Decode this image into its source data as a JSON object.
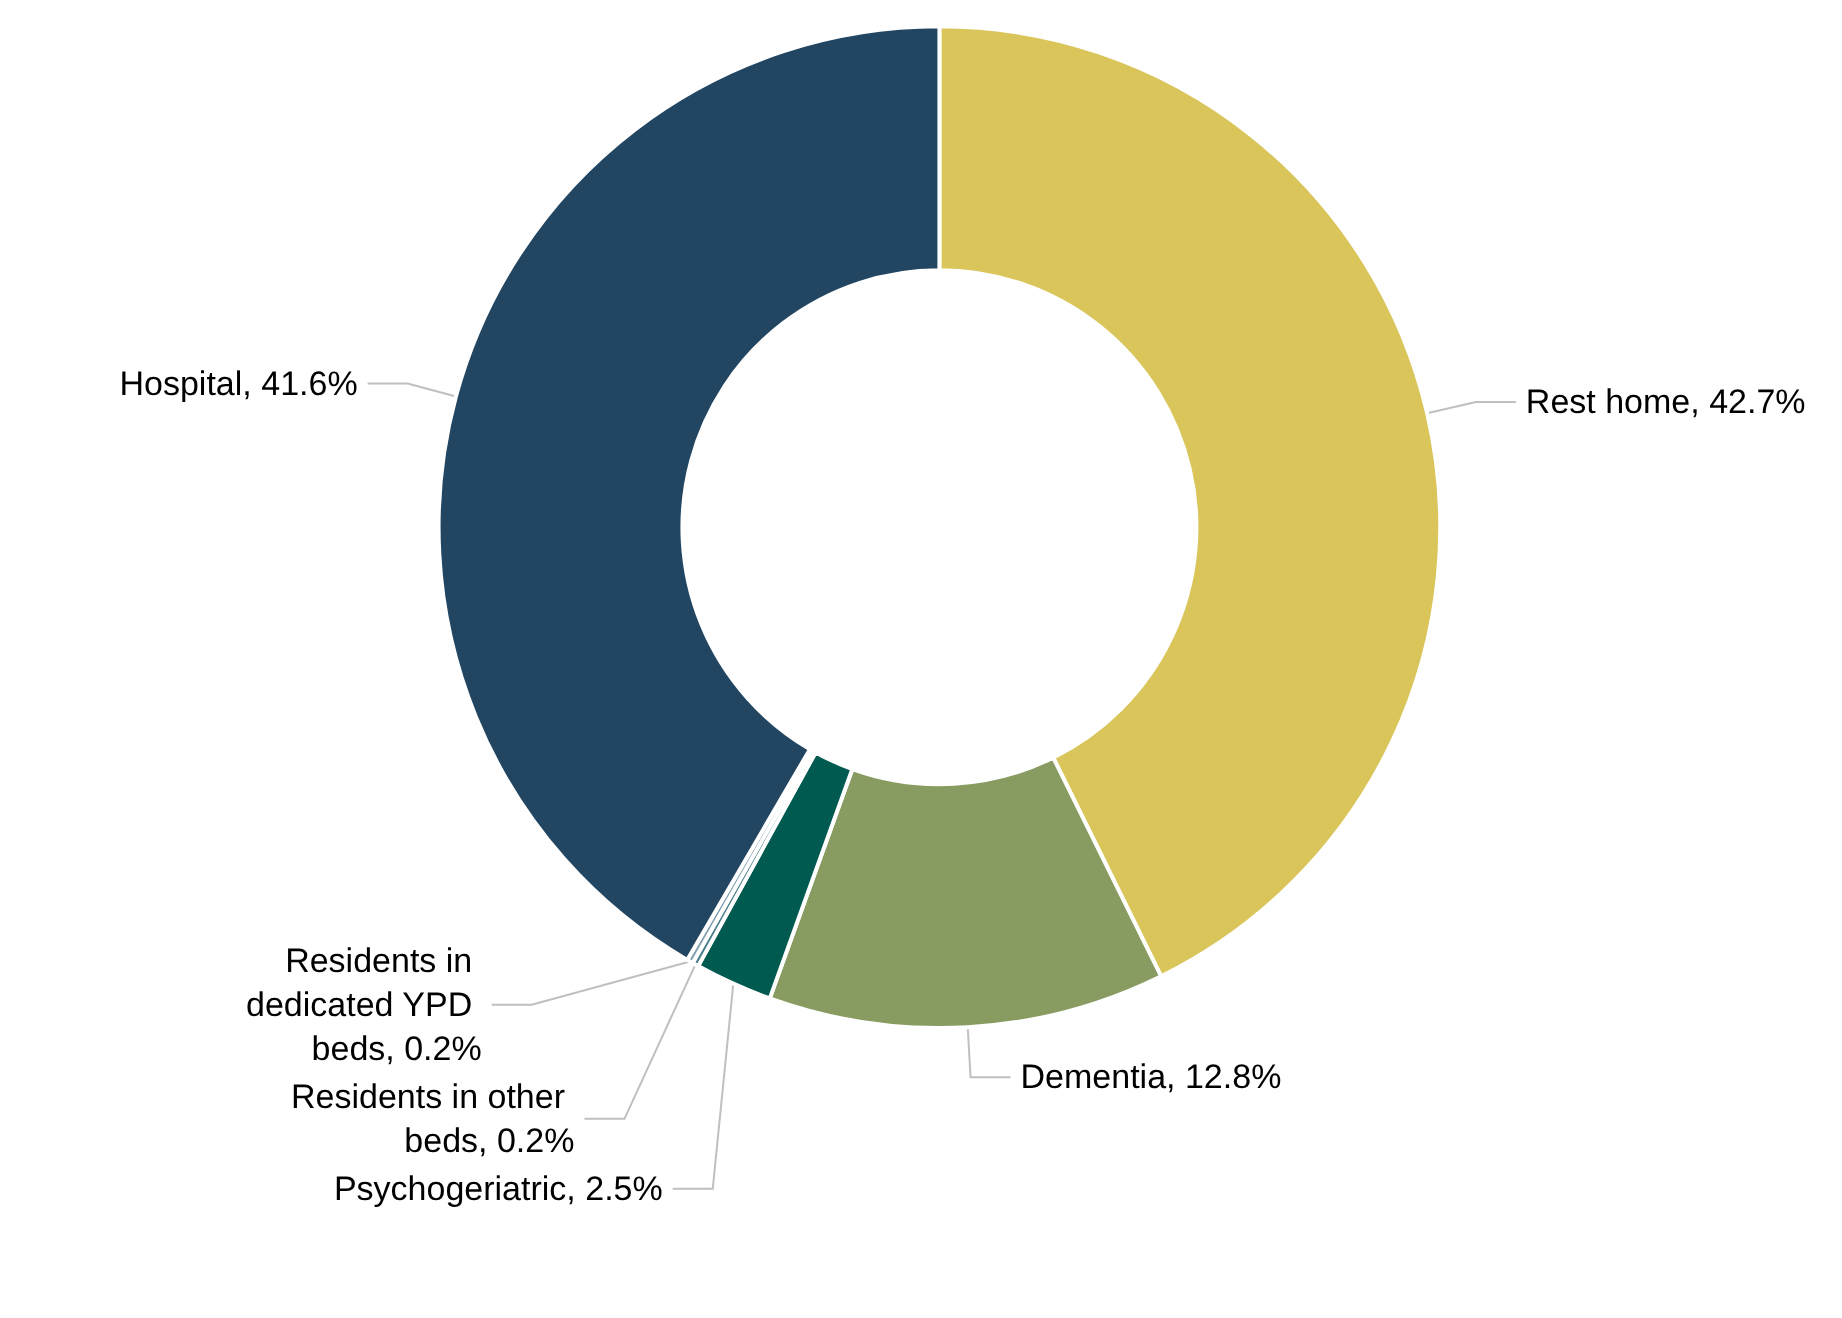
{
  "chart_data": {
    "type": "donut",
    "categories": [
      "Rest home",
      "Dementia",
      "Psychogeriatric",
      "Residents in other beds",
      "Residents in dedicated YPD beds",
      "Hospital"
    ],
    "values": [
      42.7,
      12.8,
      2.5,
      0.2,
      0.2,
      41.6
    ],
    "value_labels": [
      "42.7%",
      "12.8%",
      "2.5%",
      "0.2%",
      "0.2%",
      "41.6%"
    ],
    "colors": [
      "#d9c55a",
      "#889c62",
      "#005a50",
      "#4a7f8c",
      "#7f9fb0",
      "#224662"
    ]
  }
}
